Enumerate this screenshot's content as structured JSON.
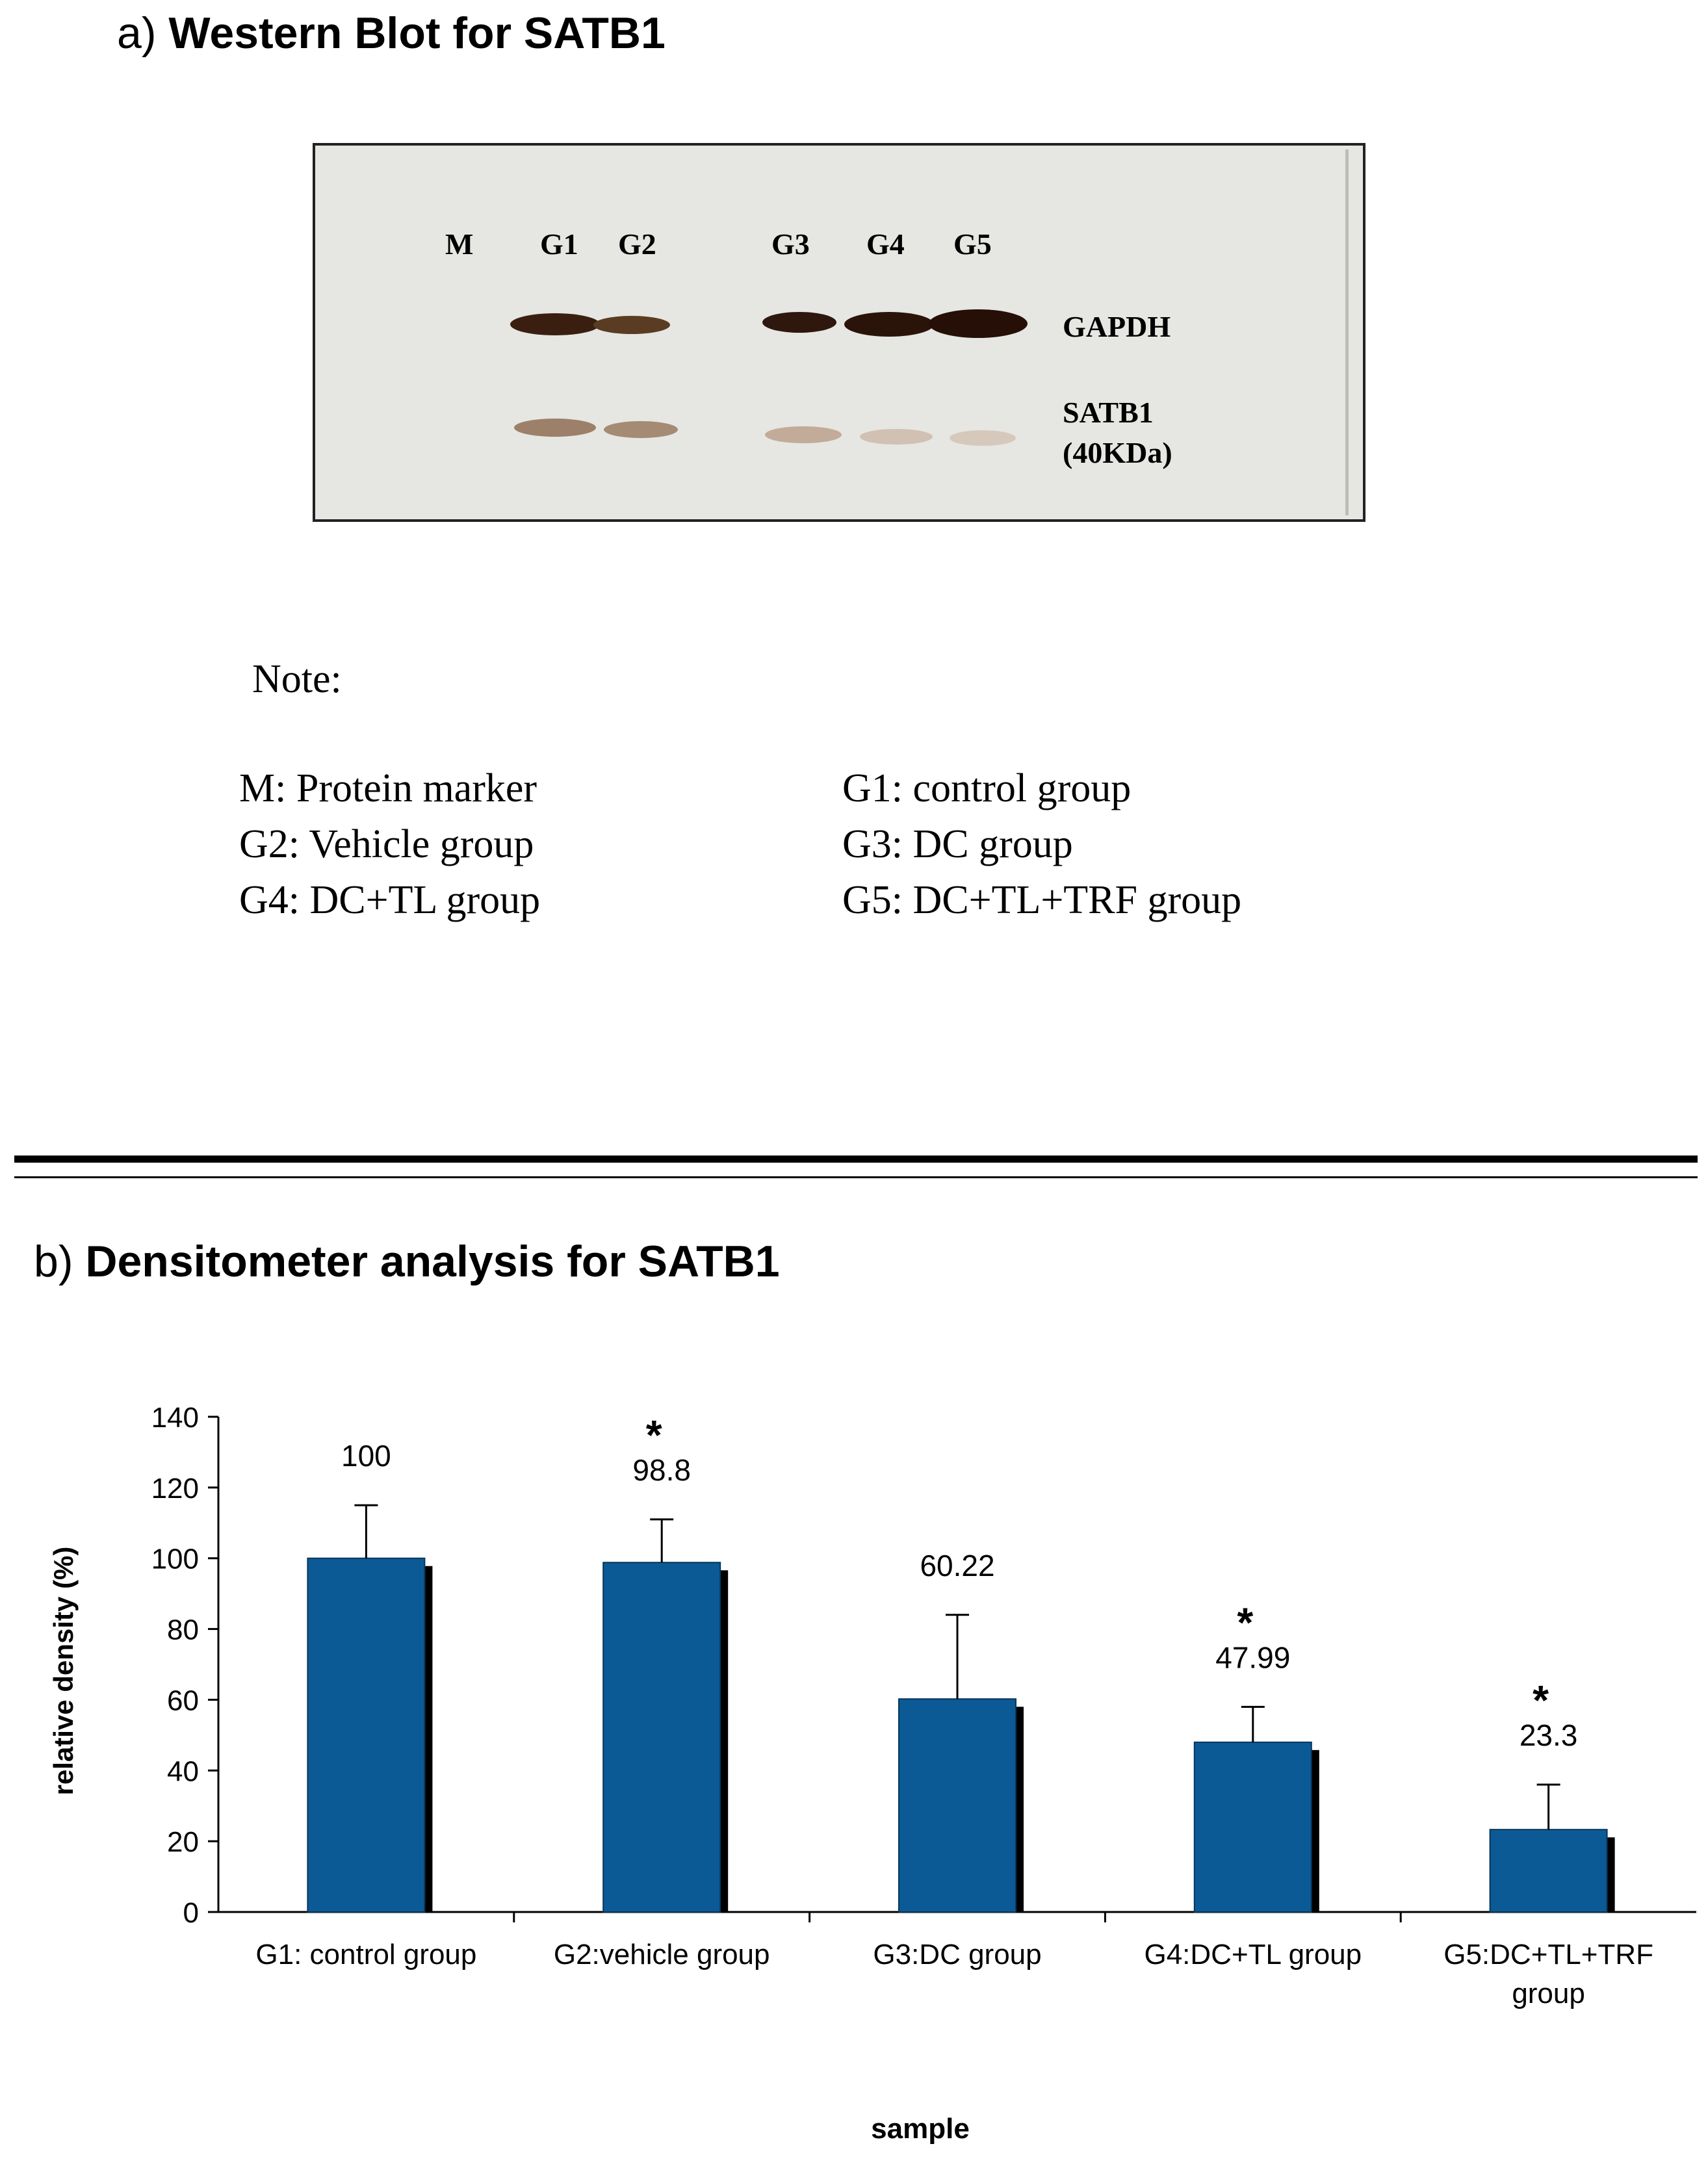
{
  "panel_a": {
    "prefix": "a)",
    "title": "Western Blot for SATB1",
    "lanes": [
      "M",
      "G1",
      "G2",
      "G3",
      "G4",
      "G5"
    ],
    "proteins": [
      "GAPDH",
      "SATB1",
      "(40KDa)"
    ]
  },
  "note": {
    "heading": "Note:",
    "items": [
      "M: Protein marker",
      "G1: control group",
      "G2: Vehicle  group",
      "G3: DC group",
      "G4: DC+TL group",
      "G5: DC+TL+TRF group"
    ]
  },
  "panel_b": {
    "prefix": "b)",
    "title": "Densitometer analysis for SATB1"
  },
  "colors": {
    "bar": "#0b5a96",
    "bar_shadow": "#000000",
    "band_dark": "#3a1f10",
    "band_light": "#b59a86",
    "blot_bg": "#e6e6e2"
  },
  "chart_data": {
    "type": "bar",
    "categories": [
      "G1: control group",
      "G2:vehicle group",
      "G3:DC group",
      "G4:DC+TL group",
      "G5:DC+TL+TRF group"
    ],
    "category_lines": [
      [
        "G1: control group"
      ],
      [
        "G2:vehicle group"
      ],
      [
        "G3:DC group"
      ],
      [
        "G4:DC+TL group"
      ],
      [
        "G5:DC+TL+TRF",
        "group"
      ]
    ],
    "values": [
      100,
      98.8,
      60.22,
      47.99,
      23.3
    ],
    "value_labels": [
      "100",
      "98.8",
      "60.22",
      "47.99",
      "23.3"
    ],
    "error_upper": [
      115,
      111,
      84,
      58,
      36
    ],
    "significance": [
      "",
      "*",
      "",
      "*",
      "*"
    ],
    "xlabel": "sample",
    "ylabel": "relative density (%)",
    "ylim": [
      0,
      140
    ],
    "yticks": [
      0,
      20,
      40,
      60,
      80,
      100,
      120,
      140
    ],
    "grid": false
  }
}
